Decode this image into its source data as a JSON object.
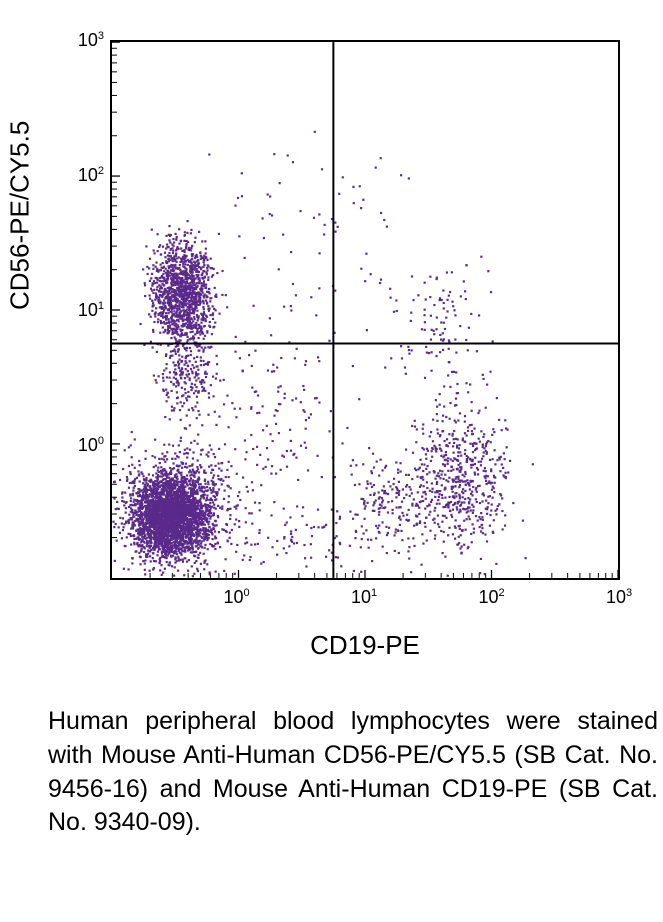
{
  "chart": {
    "type": "scatter",
    "x_label": "CD19-PE",
    "y_label": "CD56-PE/CY5.5",
    "x_scale": "log",
    "y_scale": "log",
    "x_min_exp": -1,
    "x_max_exp": 3,
    "y_min_exp": -1,
    "y_max_exp": 3,
    "x_ticks": [
      {
        "exp": 0,
        "label_base": "10",
        "label_exp": "0"
      },
      {
        "exp": 1,
        "label_base": "10",
        "label_exp": "1"
      },
      {
        "exp": 2,
        "label_base": "10",
        "label_exp": "2"
      },
      {
        "exp": 3,
        "label_base": "10",
        "label_exp": "3"
      }
    ],
    "y_ticks": [
      {
        "exp": 0,
        "label_base": "10",
        "label_exp": "0"
      },
      {
        "exp": 1,
        "label_base": "10",
        "label_exp": "1"
      },
      {
        "exp": 2,
        "label_base": "10",
        "label_exp": "2"
      },
      {
        "exp": 3,
        "label_base": "10",
        "label_exp": "3"
      }
    ],
    "quadrant_v_exp": 0.75,
    "quadrant_h_exp": 0.75,
    "point_color": "#5a2a8a",
    "point_radius": 1.2,
    "background_color": "#ffffff",
    "border_color": "#000000",
    "border_width": 2,
    "tick_fontsize": 18,
    "label_fontsize": 26,
    "clusters": [
      {
        "name": "double-negative-dense",
        "cx_exp": -0.55,
        "cy_exp": -0.55,
        "sx": 0.3,
        "sy": 0.3,
        "n": 2600
      },
      {
        "name": "double-negative-halo",
        "cx_exp": -0.45,
        "cy_exp": -0.45,
        "sx": 0.45,
        "sy": 0.45,
        "n": 900
      },
      {
        "name": "cd56-positive",
        "cx_exp": -0.45,
        "cy_exp": 1.15,
        "sx": 0.25,
        "sy": 0.38,
        "n": 1200
      },
      {
        "name": "cd56-positive-tail",
        "cx_exp": -0.4,
        "cy_exp": 0.6,
        "sx": 0.25,
        "sy": 0.45,
        "n": 300
      },
      {
        "name": "cd19-positive",
        "cx_exp": 1.75,
        "cy_exp": -0.25,
        "sx": 0.4,
        "sy": 0.55,
        "n": 550
      },
      {
        "name": "cd19-positive-low",
        "cx_exp": 1.25,
        "cy_exp": -0.45,
        "sx": 0.45,
        "sy": 0.4,
        "n": 200
      },
      {
        "name": "sparse-upper",
        "cx_exp": 0.7,
        "cy_exp": 1.5,
        "sx": 1.0,
        "sy": 0.9,
        "n": 70
      },
      {
        "name": "sparse-right",
        "cx_exp": 1.6,
        "cy_exp": 0.85,
        "sx": 0.45,
        "sy": 0.55,
        "n": 110
      },
      {
        "name": "sparse-center",
        "cx_exp": 0.3,
        "cy_exp": 0.2,
        "sx": 0.6,
        "sy": 0.6,
        "n": 120
      },
      {
        "name": "sparse-bottom",
        "cx_exp": 0.4,
        "cy_exp": -0.7,
        "sx": 0.8,
        "sy": 0.25,
        "n": 90
      }
    ]
  },
  "caption": "Human peripheral blood lymphocytes were stained with Mouse Anti-Human CD56-PE/CY5.5 (SB Cat. No. 9456-16) and Mouse Anti-Human CD19-PE (SB Cat. No. 9340-09)."
}
